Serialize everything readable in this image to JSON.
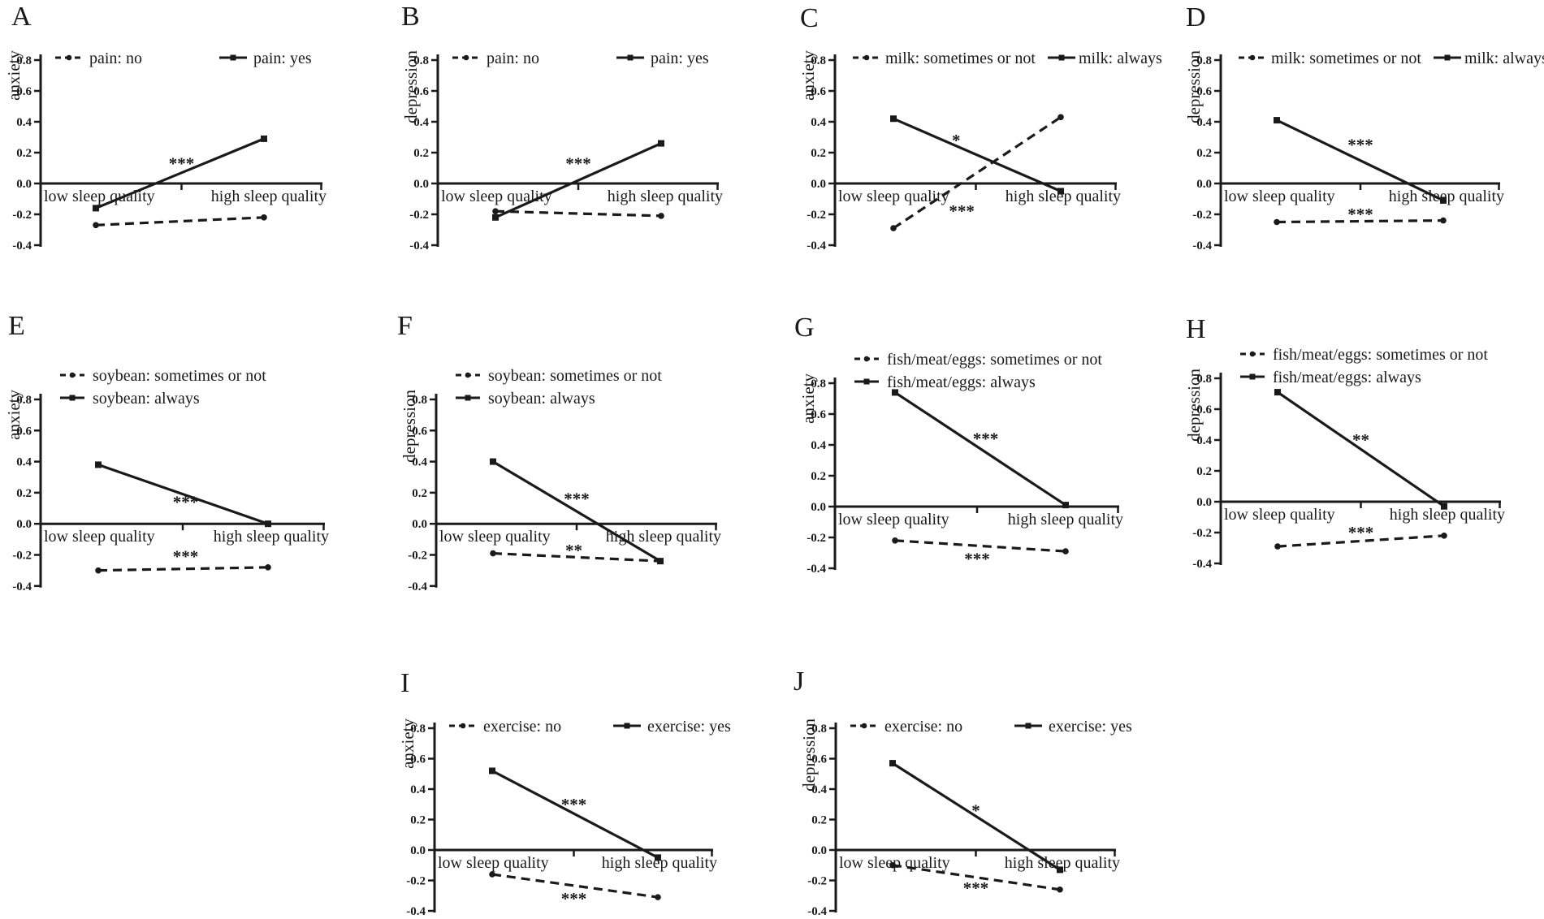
{
  "figure": {
    "ink_color": "#1a1a1a",
    "background": "#ffffff",
    "ytick_labels": [
      "0.8",
      "0.6",
      "0.4",
      "0.2",
      "0.0",
      "-0.2",
      "-0.4"
    ],
    "ylim": [
      -0.4,
      0.8
    ]
  },
  "chart_data": [
    {
      "panel": "A",
      "type": "line",
      "ylabel": "anxiety",
      "x_categories": [
        "low sleep quality",
        "high sleep quality"
      ],
      "ylim": [
        -0.4,
        0.8
      ],
      "legend_position": "top-horizontal",
      "series": [
        {
          "name": "pain: no",
          "line_style": "dashed",
          "marker": "circle",
          "values": [
            -0.27,
            -0.22
          ]
        },
        {
          "name": "pain: yes",
          "line_style": "solid",
          "marker": "square",
          "values": [
            -0.16,
            0.29
          ]
        }
      ],
      "annotations": [
        {
          "text": "***",
          "fx": 0.5,
          "y": 0.13
        }
      ]
    },
    {
      "panel": "B",
      "type": "line",
      "ylabel": "depression",
      "x_categories": [
        "low sleep quality",
        "high sleep quality"
      ],
      "ylim": [
        -0.4,
        0.8
      ],
      "legend_position": "top-horizontal",
      "series": [
        {
          "name": "pain: no",
          "line_style": "dashed",
          "marker": "circle",
          "values": [
            -0.18,
            -0.21
          ]
        },
        {
          "name": "pain: yes",
          "line_style": "solid",
          "marker": "square",
          "values": [
            -0.22,
            0.26
          ]
        }
      ],
      "annotations": [
        {
          "text": "***",
          "fx": 0.5,
          "y": 0.13
        }
      ]
    },
    {
      "panel": "C",
      "type": "line",
      "ylabel": "anxiety",
      "x_categories": [
        "low sleep quality",
        "high sleep quality"
      ],
      "ylim": [
        -0.4,
        0.8
      ],
      "legend_position": "top-horizontal-wide",
      "series": [
        {
          "name": "milk: sometimes or not",
          "line_style": "dashed",
          "marker": "circle",
          "values": [
            -0.29,
            0.43
          ]
        },
        {
          "name": "milk: always",
          "line_style": "solid",
          "marker": "square",
          "values": [
            0.42,
            -0.05
          ]
        }
      ],
      "annotations": [
        {
          "text": "*",
          "fx": 0.43,
          "y": 0.28
        },
        {
          "text": "***",
          "fx": 0.45,
          "y": -0.18
        }
      ]
    },
    {
      "panel": "D",
      "type": "line",
      "ylabel": "depression",
      "x_categories": [
        "low sleep quality",
        "high sleep quality"
      ],
      "ylim": [
        -0.4,
        0.8
      ],
      "legend_position": "top-horizontal-wide",
      "series": [
        {
          "name": "milk: sometimes or not",
          "line_style": "dashed",
          "marker": "circle",
          "values": [
            -0.25,
            -0.24
          ]
        },
        {
          "name": "milk: always",
          "line_style": "solid",
          "marker": "square",
          "values": [
            0.41,
            -0.11
          ]
        }
      ],
      "annotations": [
        {
          "text": "***",
          "fx": 0.5,
          "y": 0.25
        },
        {
          "text": "***",
          "fx": 0.5,
          "y": -0.2
        }
      ]
    },
    {
      "panel": "E",
      "type": "line",
      "ylabel": "anxiety",
      "x_categories": [
        "low sleep quality",
        "high sleep quality"
      ],
      "ylim": [
        -0.4,
        0.8
      ],
      "legend_position": "top-stacked",
      "series": [
        {
          "name": "soybean: sometimes or not",
          "line_style": "dashed",
          "marker": "circle",
          "values": [
            -0.3,
            -0.28
          ]
        },
        {
          "name": "soybean: always",
          "line_style": "solid",
          "marker": "square",
          "values": [
            0.38,
            0.0
          ]
        }
      ],
      "annotations": [
        {
          "text": "***",
          "fx": 0.51,
          "y": 0.14
        },
        {
          "text": "***",
          "fx": 0.51,
          "y": -0.21
        }
      ]
    },
    {
      "panel": "F",
      "type": "line",
      "ylabel": "depression",
      "x_categories": [
        "low sleep quality",
        "high sleep quality"
      ],
      "ylim": [
        -0.4,
        0.8
      ],
      "legend_position": "top-stacked",
      "series": [
        {
          "name": "soybean: sometimes or not",
          "line_style": "dashed",
          "marker": "circle",
          "values": [
            -0.19,
            -0.24
          ]
        },
        {
          "name": "soybean: always",
          "line_style": "solid",
          "marker": "square",
          "values": [
            0.4,
            -0.24
          ]
        }
      ],
      "annotations": [
        {
          "text": "***",
          "fx": 0.5,
          "y": 0.16
        },
        {
          "text": "**",
          "fx": 0.49,
          "y": -0.17
        }
      ]
    },
    {
      "panel": "G",
      "type": "line",
      "ylabel": "anxiety",
      "x_categories": [
        "low sleep quality",
        "high sleep quality"
      ],
      "ylim": [
        -0.4,
        0.8
      ],
      "legend_position": "top-stacked",
      "series": [
        {
          "name": "fish/meat/eggs: sometimes or not",
          "line_style": "dashed",
          "marker": "circle",
          "values": [
            -0.22,
            -0.29
          ]
        },
        {
          "name": "fish/meat/eggs: always",
          "line_style": "solid",
          "marker": "square",
          "values": [
            0.74,
            0.01
          ]
        }
      ],
      "annotations": [
        {
          "text": "***",
          "fx": 0.53,
          "y": 0.44
        },
        {
          "text": "***",
          "fx": 0.5,
          "y": -0.34
        }
      ]
    },
    {
      "panel": "H",
      "type": "line",
      "ylabel": "depression",
      "x_categories": [
        "low sleep quality",
        "high sleep quality"
      ],
      "ylim": [
        -0.4,
        0.8
      ],
      "legend_position": "top-stacked",
      "series": [
        {
          "name": "fish/meat/eggs: sometimes or not",
          "line_style": "dashed",
          "marker": "circle",
          "values": [
            -0.29,
            -0.22
          ]
        },
        {
          "name": "fish/meat/eggs: always",
          "line_style": "solid",
          "marker": "square",
          "values": [
            0.71,
            -0.03
          ]
        }
      ],
      "annotations": [
        {
          "text": "**",
          "fx": 0.5,
          "y": 0.4
        },
        {
          "text": "***",
          "fx": 0.5,
          "y": -0.2
        }
      ]
    },
    {
      "panel": "I",
      "type": "line",
      "ylabel": "anxiety",
      "x_categories": [
        "low sleep quality",
        "high sleep quality"
      ],
      "ylim": [
        -0.4,
        0.8
      ],
      "legend_position": "top-horizontal",
      "series": [
        {
          "name": "exercise: no",
          "line_style": "dashed",
          "marker": "circle",
          "values": [
            -0.16,
            -0.31
          ]
        },
        {
          "name": "exercise: yes",
          "line_style": "solid",
          "marker": "square",
          "values": [
            0.52,
            -0.05
          ]
        }
      ],
      "annotations": [
        {
          "text": "***",
          "fx": 0.5,
          "y": 0.3
        },
        {
          "text": "***",
          "fx": 0.5,
          "y": -0.32
        }
      ]
    },
    {
      "panel": "J",
      "type": "line",
      "ylabel": "depression",
      "x_categories": [
        "low sleep quality",
        "high sleep quality"
      ],
      "ylim": [
        -0.4,
        0.8
      ],
      "legend_position": "top-horizontal",
      "series": [
        {
          "name": "exercise: no",
          "line_style": "dashed",
          "marker": "circle",
          "values": [
            -0.1,
            -0.26
          ]
        },
        {
          "name": "exercise: yes",
          "line_style": "solid",
          "marker": "square",
          "values": [
            0.57,
            -0.13
          ]
        }
      ],
      "annotations": [
        {
          "text": "*",
          "fx": 0.5,
          "y": 0.26
        },
        {
          "text": "***",
          "fx": 0.5,
          "y": -0.25
        }
      ]
    }
  ]
}
